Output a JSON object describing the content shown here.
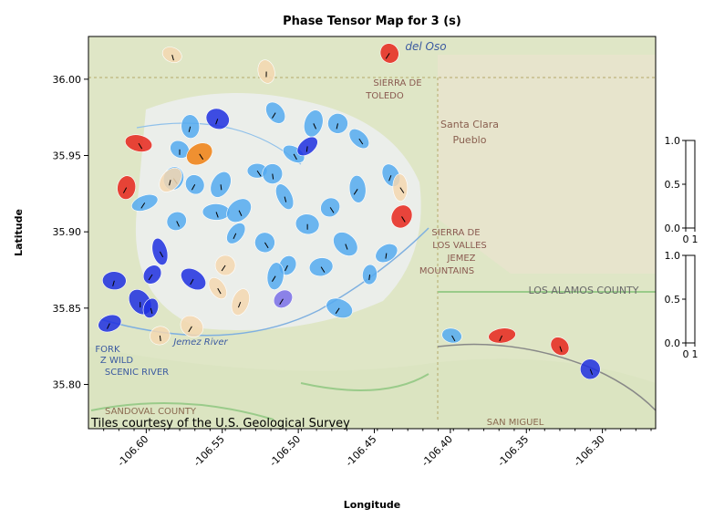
{
  "chart_data": {
    "type": "scatter",
    "title": "Phase Tensor Map for 3 (s)",
    "x_label": "Longitude",
    "y_label": "Latitude",
    "attribution": "Tiles courtesy of the U.S. Geological Survey",
    "map_labels": [
      "del Oso",
      "SIERRA DE",
      "TOLEDO",
      "Santa Clara",
      "Pueblo",
      "SIERRA DE",
      "LOS VALLES",
      "JEMEZ",
      "MOUNTAINS",
      "LOS ALAMOS COUNTY",
      "FORK",
      "Z WILD",
      "SCENIC RIVER",
      "SANDOVAL COUNTY",
      "SAN MIGUEL",
      "Jemez River"
    ],
    "xlim": [
      -106.638,
      -106.265
    ],
    "ylim": [
      35.771,
      36.028
    ],
    "xticks": [
      {
        "value": -106.6,
        "label": "-106.60"
      },
      -106.55,
      {
        "value": -106.5,
        "label": "-106.50"
      },
      -106.45,
      {
        "value": -106.4,
        "label": "-106.40"
      },
      -106.35,
      {
        "value": -106.3,
        "label": "-106.30"
      }
    ],
    "yticks": [
      {
        "value": 35.8,
        "label": "35.80"
      },
      35.85,
      {
        "value": 35.9,
        "label": "35.90"
      },
      35.95,
      {
        "value": 36.0,
        "label": "36.00"
      }
    ],
    "series": [
      {
        "color": "#55aaf0",
        "x": [
          -106.527,
          -106.515,
          -106.49,
          -106.474,
          -106.503,
          -106.461,
          -106.479,
          -106.494,
          -106.509,
          -106.507,
          -106.485,
          -106.469,
          -106.453,
          -106.442,
          -106.473,
          -106.522,
          -106.541,
          -106.554,
          -106.568,
          -106.582,
          -106.601,
          -106.578,
          -106.571,
          -106.539,
          -106.399,
          -106.439,
          -106.551,
          -106.517,
          -106.46,
          -106.515,
          -106.58
        ],
        "y": [
          35.94,
          35.978,
          35.971,
          35.971,
          35.951,
          35.928,
          35.916,
          35.905,
          35.923,
          35.878,
          35.877,
          35.892,
          35.872,
          35.886,
          35.85,
          35.893,
          35.899,
          35.913,
          35.931,
          35.935,
          35.919,
          35.954,
          35.969,
          35.914,
          35.832,
          35.937,
          35.931,
          35.938,
          35.961,
          35.871,
          35.907
        ]
      },
      {
        "color": "#1f2fe0",
        "x": [
          -106.553,
          -106.591,
          -106.596,
          -106.621,
          -106.604,
          -106.597,
          -106.624,
          -106.569,
          -106.308,
          -106.494
        ],
        "y": [
          35.974,
          35.887,
          35.872,
          35.868,
          35.854,
          35.85,
          35.84,
          35.869,
          35.81,
          35.956
        ]
      },
      {
        "color": "#e8261c",
        "x": [
          -106.605,
          -106.44,
          -106.432,
          -106.366,
          -106.328,
          -106.613
        ],
        "y": [
          35.958,
          36.017,
          35.91,
          35.832,
          35.825,
          35.929
        ]
      },
      {
        "color": "#f07f10",
        "x": [
          -106.565
        ],
        "y": [
          35.951
        ]
      },
      {
        "color": "#f5d7b0",
        "x": [
          -106.583,
          -106.521,
          -106.584,
          -106.548,
          -106.553,
          -106.538,
          -106.591,
          -106.57,
          -106.433
        ],
        "y": [
          36.016,
          36.005,
          35.934,
          35.878,
          35.863,
          35.854,
          35.832,
          35.838,
          35.929
        ]
      },
      {
        "color": "#7a6ee8",
        "x": [
          -106.51
        ],
        "y": [
          35.856
        ]
      }
    ],
    "colorbars": [
      {
        "ylim": [
          0,
          1
        ],
        "yticks": [
          {
            "value": 0,
            "label": "0.0"
          },
          {
            "value": 0.5,
            "label": "0.5"
          },
          {
            "value": 1,
            "label": "1.0"
          }
        ],
        "xticks": [
          0,
          1
        ]
      },
      {
        "ylim": [
          0,
          1
        ],
        "yticks": [
          {
            "value": 0,
            "label": "0.0"
          },
          {
            "value": 0.5,
            "label": "0.5"
          },
          {
            "value": 1,
            "label": "1.0"
          }
        ],
        "xticks": [
          0,
          1
        ]
      }
    ]
  }
}
